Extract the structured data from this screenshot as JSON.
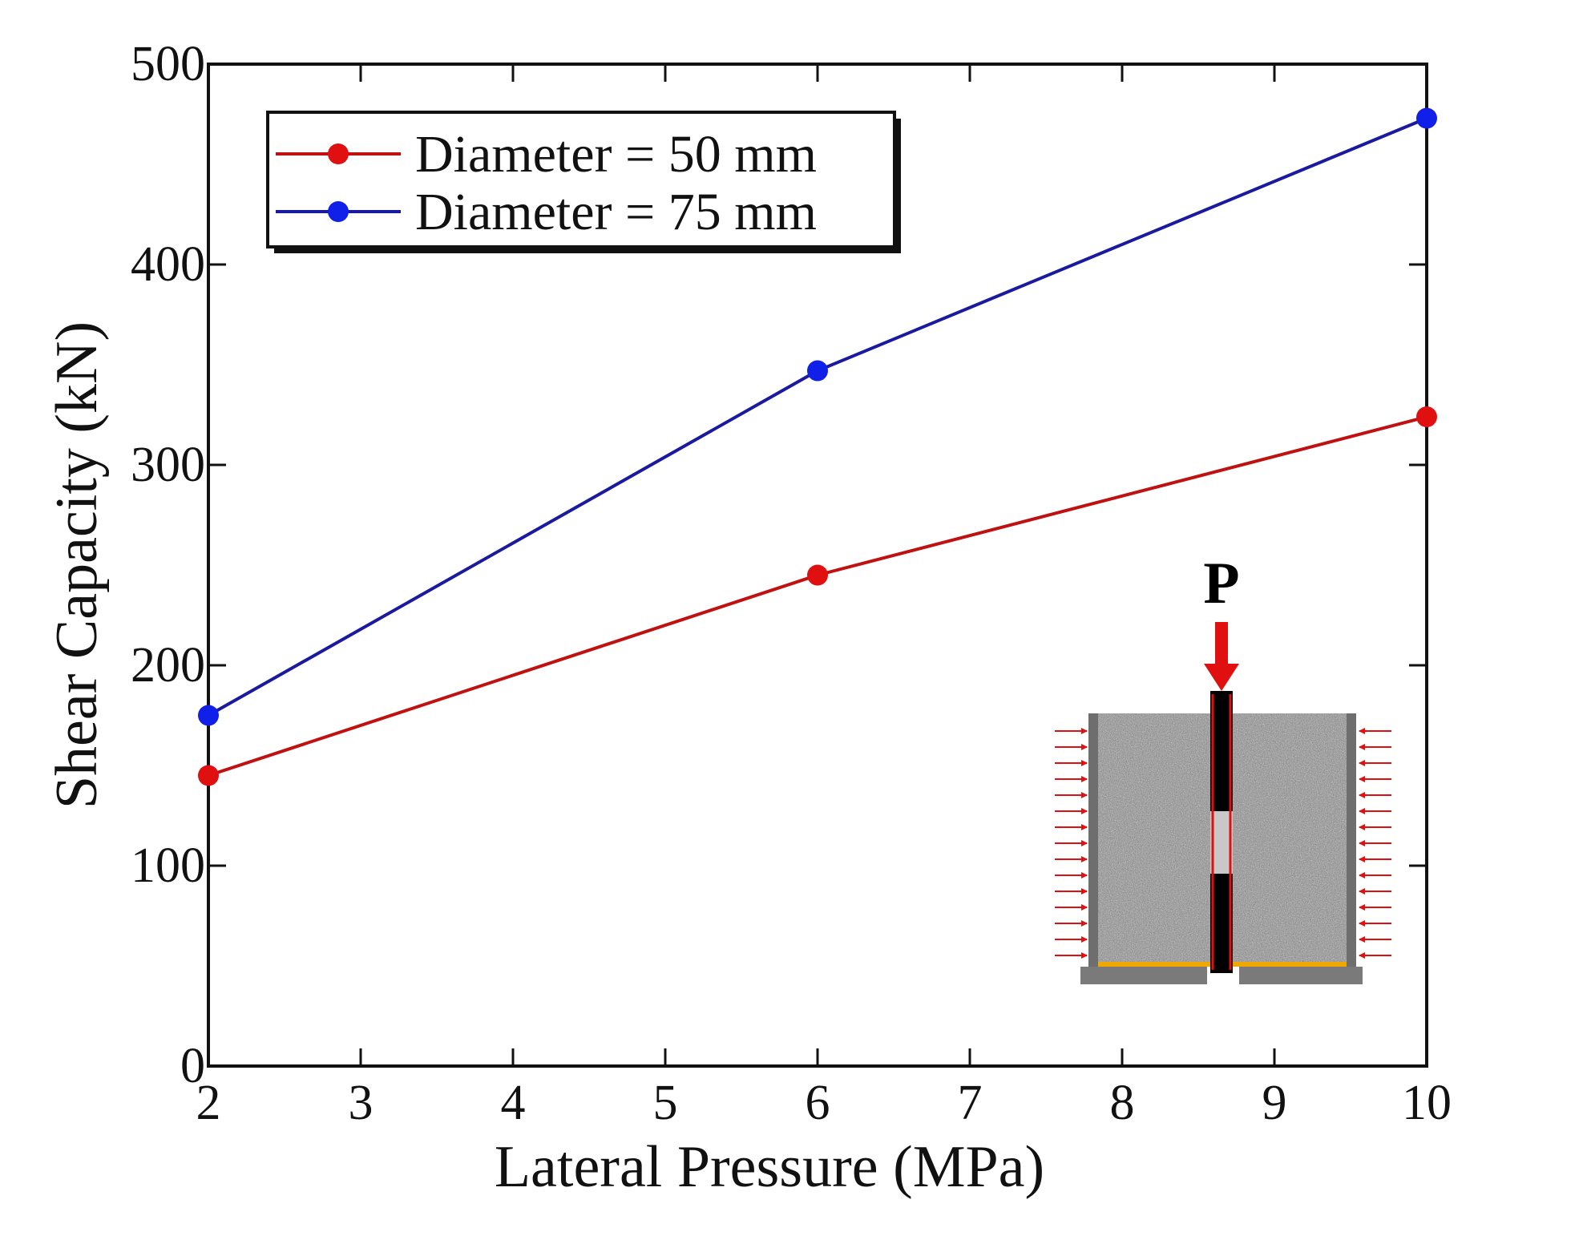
{
  "chart_data": {
    "type": "line",
    "title": "",
    "xlabel": "Lateral Pressure (MPa)",
    "ylabel": "Shear Capacity (kN)",
    "xlim": [
      2,
      10
    ],
    "ylim": [
      0,
      500
    ],
    "xticks": [
      "2",
      "3",
      "4",
      "5",
      "6",
      "7",
      "8",
      "9",
      "10"
    ],
    "yticks": [
      "0",
      "100",
      "200",
      "300",
      "400",
      "500"
    ],
    "grid": false,
    "legend_position": "top-left",
    "series": [
      {
        "name": "Diameter = 50 mm",
        "color": "#e01010",
        "line_color": "#c01010",
        "x": [
          2,
          6,
          10
        ],
        "y": [
          145,
          245,
          324
        ]
      },
      {
        "name": "Diameter = 75 mm",
        "color": "#1020e8",
        "line_color": "#1a1aa0",
        "x": [
          2,
          6,
          10
        ],
        "y": [
          175,
          347,
          473
        ]
      }
    ],
    "inset": {
      "load_label": "P"
    }
  }
}
